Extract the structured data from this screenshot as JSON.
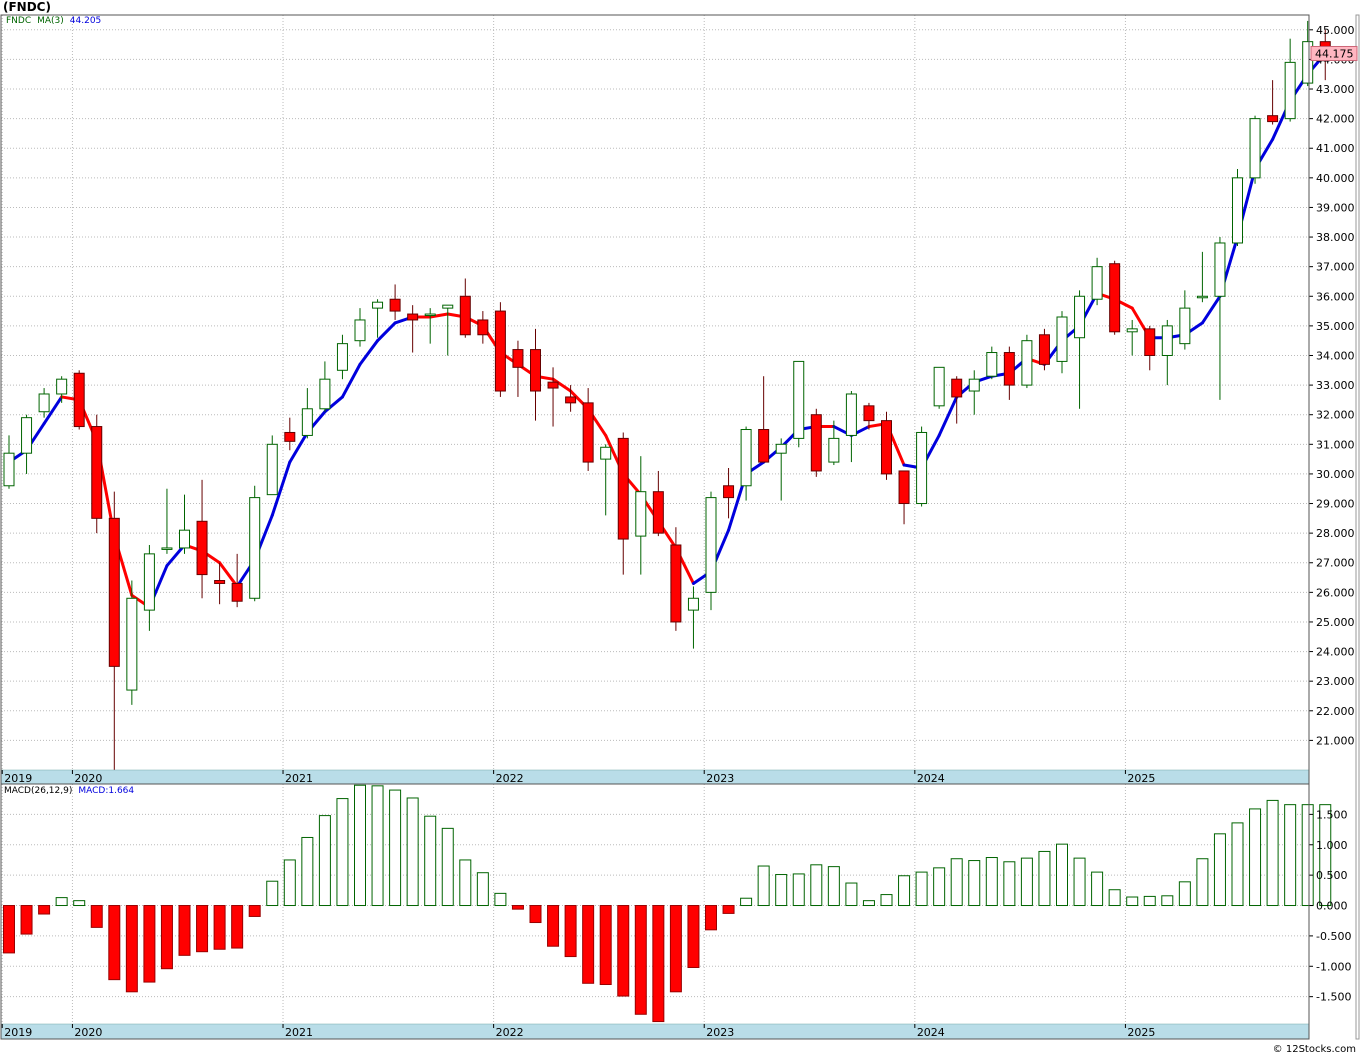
{
  "header": {
    "title": "(FNDC)"
  },
  "price_legend": {
    "symbol": "FNDC",
    "ma_label": "MA(3)",
    "ma_value": "44.205"
  },
  "macd_legend": {
    "label": "MACD(26,12,9)",
    "value_label": "MACD:1.664"
  },
  "last_price_label": "44.175",
  "watermark": "© 12Stocks.com",
  "colors": {
    "up": "#006400",
    "down": "#ff0000",
    "ma_up": "#0000dd",
    "ma_down": "#ff0000",
    "grid": "#bbbbbb",
    "axis_band": "#b9dde8",
    "label_box": "#ffb6c1"
  },
  "chart_data": [
    {
      "type": "candlestick",
      "interval": "monthly",
      "ylim": [
        20.0,
        45.5
      ],
      "y_ticks": [
        "21.000",
        "22.000",
        "23.000",
        "24.000",
        "25.000",
        "26.000",
        "27.000",
        "28.000",
        "29.000",
        "30.000",
        "31.000",
        "32.000",
        "33.000",
        "34.000",
        "35.000",
        "36.000",
        "37.000",
        "38.000",
        "39.000",
        "40.000",
        "41.000",
        "42.000",
        "43.000",
        "44.000",
        "45.000"
      ],
      "x_labels": [
        "2019",
        "2020",
        "2021",
        "2022",
        "2023",
        "2024",
        "2025"
      ],
      "x_label_index": [
        0,
        4,
        16,
        28,
        40,
        52,
        64
      ],
      "ohlc": [
        [
          29.6,
          31.3,
          29.5,
          30.7
        ],
        [
          30.7,
          32.0,
          30.0,
          31.9
        ],
        [
          32.1,
          32.9,
          31.9,
          32.7
        ],
        [
          32.7,
          33.3,
          32.4,
          33.2
        ],
        [
          33.4,
          33.5,
          31.5,
          31.6
        ],
        [
          31.6,
          32.0,
          28.0,
          28.5
        ],
        [
          28.5,
          29.4,
          20.0,
          23.5
        ],
        [
          22.7,
          26.4,
          22.2,
          25.8
        ],
        [
          25.4,
          27.6,
          24.7,
          27.3
        ],
        [
          27.5,
          29.5,
          27.3,
          27.5
        ],
        [
          27.5,
          29.3,
          27.3,
          28.1
        ],
        [
          28.4,
          29.8,
          25.8,
          26.6
        ],
        [
          26.4,
          27.0,
          25.6,
          26.3
        ],
        [
          26.3,
          27.3,
          25.5,
          25.7
        ],
        [
          25.8,
          29.6,
          25.7,
          29.2
        ],
        [
          29.3,
          31.3,
          29.3,
          31.0
        ],
        [
          31.4,
          31.9,
          30.8,
          31.1
        ],
        [
          31.3,
          32.9,
          31.2,
          32.2
        ],
        [
          32.2,
          33.8,
          32.1,
          33.2
        ],
        [
          33.5,
          34.7,
          33.2,
          34.4
        ],
        [
          34.5,
          35.6,
          34.3,
          35.2
        ],
        [
          35.6,
          35.9,
          34.6,
          35.8
        ],
        [
          35.9,
          36.4,
          35.2,
          35.5
        ],
        [
          35.4,
          35.7,
          34.1,
          35.2
        ],
        [
          35.4,
          35.6,
          34.4,
          35.4
        ],
        [
          35.6,
          35.7,
          34.0,
          35.7
        ],
        [
          36.0,
          36.6,
          34.6,
          34.7
        ],
        [
          35.2,
          35.5,
          34.4,
          34.7
        ],
        [
          35.5,
          35.8,
          32.6,
          32.8
        ],
        [
          34.2,
          34.5,
          32.6,
          33.6
        ],
        [
          34.2,
          34.9,
          31.8,
          32.8
        ],
        [
          33.1,
          33.6,
          31.6,
          32.9
        ],
        [
          32.6,
          33.0,
          32.1,
          32.4
        ],
        [
          32.4,
          32.9,
          30.1,
          30.4
        ],
        [
          30.5,
          31.0,
          28.6,
          30.9
        ],
        [
          31.2,
          31.4,
          26.6,
          27.8
        ],
        [
          27.9,
          30.6,
          26.6,
          29.4
        ],
        [
          29.4,
          30.1,
          27.9,
          28.0
        ],
        [
          27.6,
          28.2,
          24.7,
          25.0
        ],
        [
          25.4,
          26.2,
          24.1,
          25.8
        ],
        [
          26.0,
          29.4,
          25.4,
          29.2
        ],
        [
          29.6,
          30.2,
          28.5,
          29.2
        ],
        [
          29.6,
          31.6,
          29.1,
          31.5
        ],
        [
          31.5,
          33.3,
          30.4,
          30.4
        ],
        [
          30.7,
          31.2,
          29.1,
          31.0
        ],
        [
          31.2,
          33.8,
          30.9,
          33.8
        ],
        [
          32.0,
          32.2,
          29.9,
          30.1
        ],
        [
          30.4,
          31.8,
          30.3,
          31.2
        ],
        [
          31.3,
          32.8,
          30.4,
          32.7
        ],
        [
          32.3,
          32.4,
          31.5,
          31.8
        ],
        [
          31.8,
          32.1,
          29.8,
          30.0
        ],
        [
          30.1,
          30.1,
          28.3,
          29.0
        ],
        [
          29.0,
          31.6,
          28.9,
          31.4
        ],
        [
          32.3,
          33.6,
          32.2,
          33.6
        ],
        [
          33.2,
          33.3,
          31.7,
          32.6
        ],
        [
          32.8,
          33.5,
          32.0,
          33.2
        ],
        [
          33.3,
          34.3,
          33.2,
          34.1
        ],
        [
          34.1,
          34.3,
          32.5,
          33.0
        ],
        [
          33.0,
          34.7,
          32.9,
          34.5
        ],
        [
          34.7,
          34.9,
          33.5,
          33.7
        ],
        [
          33.8,
          35.5,
          33.4,
          35.3
        ],
        [
          34.6,
          36.2,
          32.2,
          36.0
        ],
        [
          35.9,
          37.3,
          35.7,
          37.0
        ],
        [
          37.1,
          37.2,
          34.7,
          34.8
        ],
        [
          34.8,
          35.2,
          34.0,
          34.9
        ],
        [
          34.9,
          35.0,
          33.5,
          34.0
        ],
        [
          34.0,
          35.2,
          33.0,
          35.0
        ],
        [
          34.4,
          36.2,
          34.2,
          35.6
        ],
        [
          36.0,
          37.5,
          35.8,
          36.0
        ],
        [
          36.0,
          38.0,
          32.5,
          37.8
        ],
        [
          37.8,
          40.3,
          37.7,
          40.0
        ],
        [
          40.0,
          42.1,
          39.8,
          42.0
        ],
        [
          42.1,
          43.3,
          41.8,
          41.9
        ],
        [
          42.0,
          44.7,
          41.9,
          43.9
        ],
        [
          43.2,
          45.3,
          43.1,
          44.6
        ],
        [
          44.6,
          45.0,
          43.3,
          44.2
        ]
      ],
      "ma3": [
        30.4,
        30.8,
        31.7,
        32.6,
        32.5,
        31.1,
        27.9,
        25.9,
        25.5,
        26.9,
        27.6,
        27.4,
        27.0,
        26.2,
        27.1,
        28.6,
        30.4,
        31.4,
        32.1,
        32.6,
        33.7,
        34.5,
        35.1,
        35.3,
        35.3,
        35.4,
        35.3,
        35.0,
        34.1,
        33.7,
        33.3,
        33.2,
        32.8,
        32.2,
        31.3,
        30.0,
        29.3,
        28.4,
        27.5,
        26.3,
        26.7,
        28.1,
        30.0,
        30.4,
        30.9,
        31.5,
        31.6,
        31.6,
        31.3,
        31.6,
        31.7,
        30.3,
        30.2,
        31.3,
        32.6,
        33.1,
        33.3,
        33.4,
        33.9,
        33.7,
        34.5,
        35.0,
        36.1,
        35.9,
        35.6,
        34.6,
        34.6,
        34.7,
        35.1,
        36.0,
        38.0,
        40.3,
        41.3,
        42.6,
        43.5,
        44.2
      ],
      "ma_trend_up": [
        true,
        true,
        true,
        true,
        false,
        false,
        false,
        false,
        false,
        true,
        true,
        false,
        false,
        false,
        true,
        true,
        true,
        true,
        true,
        true,
        true,
        true,
        true,
        true,
        false,
        false,
        false,
        false,
        false,
        false,
        false,
        false,
        false,
        false,
        false,
        false,
        false,
        false,
        false,
        false,
        true,
        true,
        true,
        true,
        true,
        true,
        true,
        false,
        true,
        true,
        false,
        false,
        true,
        true,
        true,
        true,
        true,
        true,
        true,
        false,
        true,
        true,
        true,
        false,
        false,
        false,
        true,
        true,
        true,
        true,
        true,
        true,
        true,
        true,
        true,
        true
      ]
    },
    {
      "type": "bar",
      "name": "MACD(26,12,9)",
      "ylim": [
        -1.95,
        2.0
      ],
      "y_ticks": [
        "-1.500",
        "-1.000",
        "-0.500",
        "0.000",
        "0.500",
        "1.000",
        "1.500"
      ],
      "x_labels": [
        "2019",
        "2020",
        "2021",
        "2022",
        "2023",
        "2024",
        "2025"
      ],
      "x_label_index": [
        0,
        4,
        16,
        28,
        40,
        52,
        64
      ],
      "values": [
        -0.78,
        -0.47,
        -0.14,
        0.13,
        0.08,
        -0.36,
        -1.22,
        -1.42,
        -1.26,
        -1.04,
        -0.82,
        -0.76,
        -0.72,
        -0.7,
        -0.18,
        0.4,
        0.75,
        1.12,
        1.48,
        1.76,
        1.98,
        1.97,
        1.9,
        1.77,
        1.47,
        1.27,
        0.75,
        0.54,
        0.2,
        -0.06,
        -0.28,
        -0.67,
        -0.84,
        -1.28,
        -1.3,
        -1.49,
        -1.79,
        -1.91,
        -1.42,
        -1.02,
        -0.4,
        -0.13,
        0.12,
        0.65,
        0.51,
        0.52,
        0.67,
        0.64,
        0.37,
        0.08,
        0.18,
        0.49,
        0.55,
        0.62,
        0.77,
        0.74,
        0.79,
        0.72,
        0.78,
        0.89,
        1.01,
        0.78,
        0.55,
        0.26,
        0.14,
        0.15,
        0.16,
        0.39,
        0.77,
        1.18,
        1.36,
        1.59,
        1.73,
        1.66,
        1.66,
        1.66
      ]
    }
  ]
}
